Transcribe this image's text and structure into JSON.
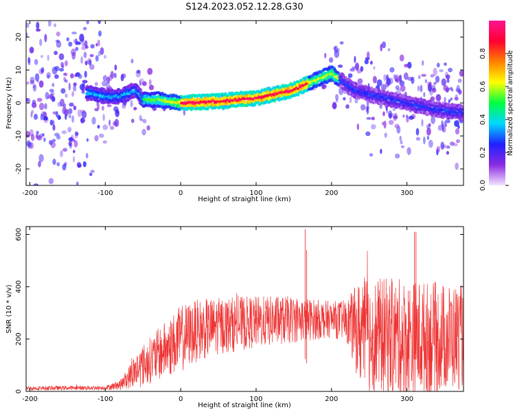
{
  "figure": {
    "title": "S124.2023.052.12.28.G30"
  },
  "chart_data": [
    {
      "type": "heatmap",
      "xlabel": "Height of straight line (km)",
      "ylabel": "Frequency (Hz)",
      "xlim": [
        -205,
        375
      ],
      "ylim": [
        -25,
        25
      ],
      "xticks": [
        -200,
        -100,
        0,
        100,
        200,
        300
      ],
      "yticks": [
        -20,
        -10,
        0,
        10,
        20
      ],
      "colorbar": {
        "label": "Normalized spectral amplitude",
        "range": [
          0.0,
          1.0
        ],
        "ticks": [
          0.0,
          0.2,
          0.4,
          0.6,
          0.8
        ],
        "colors": [
          "#f4e4ff",
          "#8a2be2",
          "#2020ff",
          "#00d8ff",
          "#00ff40",
          "#ffff00",
          "#ff8000",
          "#ff0030",
          "#ff1493"
        ]
      },
      "ridge": {
        "x": [
          -120,
          -100,
          -80,
          -60,
          -50,
          -30,
          0,
          50,
          100,
          150,
          180,
          200,
          230,
          260,
          300,
          340,
          375
        ],
        "y": [
          3,
          2,
          2,
          4,
          1,
          1,
          0,
          0.5,
          1.5,
          4,
          7,
          9,
          4,
          2,
          0,
          -2,
          -3
        ]
      },
      "grid": false
    },
    {
      "type": "line",
      "xlabel": "Height of straight line (km)",
      "ylabel": "SNR (10 * v/v)",
      "xlim": [
        -205,
        375
      ],
      "ylim": [
        0,
        630
      ],
      "xticks": [
        -200,
        -100,
        0,
        100,
        200,
        300
      ],
      "yticks": [
        0,
        200,
        400,
        600
      ],
      "series": [
        {
          "color": "#ee3333",
          "envelope_x": [
            -205,
            -100,
            -80,
            -70,
            -60,
            -40,
            -20,
            0,
            20,
            50,
            100,
            150,
            200,
            220,
            240,
            300,
            375
          ],
          "envelope_mean": [
            12,
            14,
            25,
            50,
            80,
            120,
            160,
            200,
            230,
            250,
            265,
            275,
            275,
            270,
            220,
            200,
            210
          ],
          "envelope_spread": [
            8,
            8,
            20,
            40,
            70,
            90,
            110,
            130,
            120,
            110,
            100,
            90,
            70,
            80,
            220,
            230,
            200
          ],
          "peaks": [
            {
              "x": 165,
              "y": 620
            },
            {
              "x": 312,
              "y": 610
            },
            {
              "x": 310,
              "y": 610
            },
            {
              "x": 167,
              "y": 540
            }
          ]
        }
      ],
      "grid": false
    }
  ]
}
